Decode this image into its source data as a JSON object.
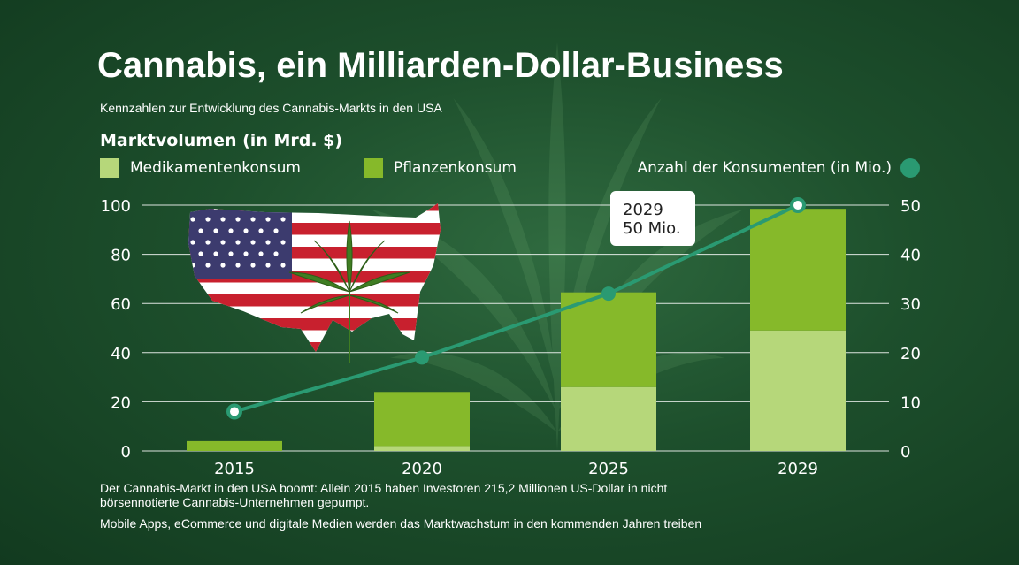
{
  "title": "Cannabis, ein Milliarden-Dollar-Business",
  "subtitle": "Kennzahlen zur Entwicklung des Cannabis-Markts in den USA",
  "y_axis_title": "Marktvolumen (in Mrd. $)",
  "legend": {
    "medical": "Medikamentenkonsum",
    "plant": "Pflanzenkonsum",
    "consumers": "Anzahl der Konsumenten (in Mio.)"
  },
  "callout": {
    "line1": "2029",
    "line2": "50 Mio."
  },
  "footnotes": {
    "note1": "Der Cannabis-Markt in den USA boomt: Allein 2015 haben Investoren 215,2 Millionen US-Dollar in nicht börsennotierte Cannabis-Unternehmen gepumpt.",
    "note2": "Mobile Apps, eCommerce und digitale Medien werden das Marktwachstum in den kommenden Jahren treiben"
  },
  "colors": {
    "medical": "#b6d77a",
    "plant": "#86b92a",
    "line": "#2a9a72",
    "grid": "#ffffff"
  },
  "illustration": {
    "flag": "usa-map-flag",
    "leaf": "cannabis-leaf-icon"
  },
  "chart_data": {
    "type": "bar",
    "stacked": true,
    "categories": [
      "2015",
      "2020",
      "2025",
      "2029"
    ],
    "series": [
      {
        "name": "Medikamentenkonsum",
        "values": [
          0,
          2,
          26,
          49
        ]
      },
      {
        "name": "Pflanzenkonsum",
        "values": [
          4,
          22,
          38.5,
          49.5
        ]
      }
    ],
    "line_series": {
      "name": "Anzahl der Konsumenten (in Mio.)",
      "values": [
        8,
        19,
        32,
        50
      ],
      "axis": "right"
    },
    "ylim": [
      0,
      100
    ],
    "y_ticks": [
      "0",
      "20",
      "40",
      "60",
      "80",
      "100"
    ],
    "y2lim": [
      0,
      50
    ],
    "y2_ticks": [
      "0",
      "10",
      "20",
      "30",
      "40",
      "50"
    ],
    "grid": true,
    "legend_position": "top"
  }
}
